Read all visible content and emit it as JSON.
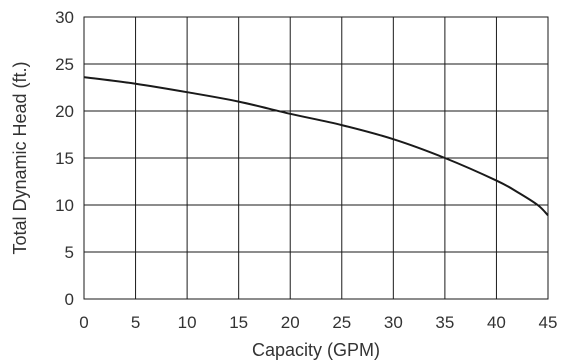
{
  "chart_data": {
    "type": "line",
    "title": "",
    "xlabel": "Capacity (GPM)",
    "ylabel": "Total Dynamic Head (ft.)",
    "xlim": [
      0,
      45
    ],
    "ylim": [
      0,
      30
    ],
    "x_ticks": [
      0,
      5,
      10,
      15,
      20,
      25,
      30,
      35,
      40,
      45
    ],
    "y_ticks": [
      0,
      5,
      10,
      15,
      20,
      25,
      30
    ],
    "grid": true,
    "series": [
      {
        "x": [
          0,
          5,
          10,
          15,
          20,
          25,
          30,
          35,
          40,
          42,
          44,
          45
        ],
        "y": [
          23.6,
          22.9,
          22.0,
          21.0,
          19.7,
          18.5,
          17.0,
          15.0,
          12.6,
          11.4,
          10.0,
          8.9
        ]
      }
    ]
  }
}
